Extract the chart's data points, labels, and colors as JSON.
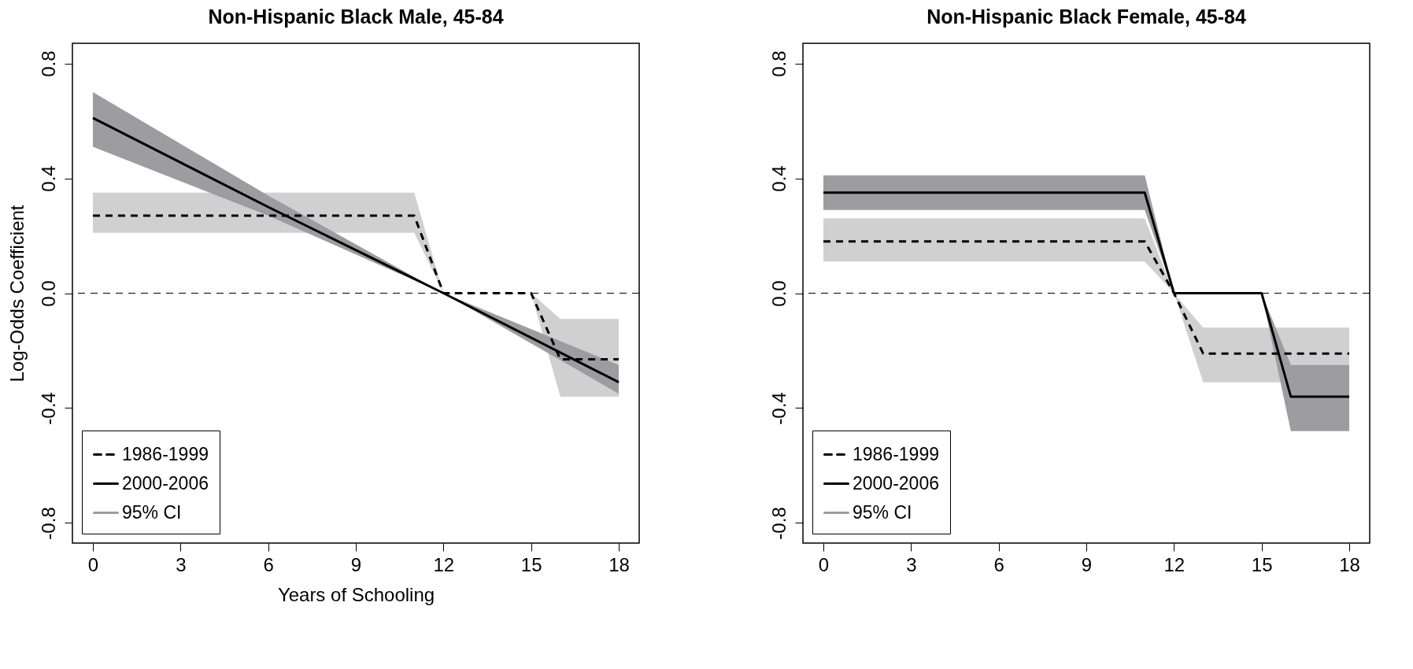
{
  "chart_data": [
    {
      "type": "line",
      "title": "Non-Hispanic Black Male, 45-84",
      "xlabel": "Years of Schooling",
      "ylabel": "Log-Odds Coefficient",
      "xlim": [
        -0.7,
        18.7
      ],
      "ylim": [
        -0.87,
        0.87
      ],
      "xticks": [
        0,
        3,
        6,
        9,
        12,
        15,
        18
      ],
      "yticks": [
        -0.8,
        -0.4,
        {
          "value": 0,
          "label": "0.0"
        },
        0.4,
        0.8
      ],
      "grid": false,
      "legend": "bottom left",
      "marker": "none",
      "annotations": [
        "95% CI"
      ],
      "ref_lines": [
        {
          "axis": "y",
          "value": 0,
          "label": null,
          "line_style": "dashed",
          "color": "#000000"
        }
      ],
      "series": [
        {
          "name": "1986-1999",
          "color": "#000000",
          "line_style": "dashed",
          "x": [
            0,
            11,
            12,
            15,
            16,
            18
          ],
          "values": [
            0.27,
            0.27,
            0,
            0,
            -0.23,
            -0.23
          ],
          "lower": [
            0.21,
            0.21,
            0,
            0,
            -0.36,
            -0.36
          ],
          "upper": [
            0.35,
            0.35,
            0,
            0,
            -0.09,
            -0.09
          ]
        },
        {
          "name": "2000-2006",
          "color": "#000000",
          "line_style": "solid",
          "x": [
            0,
            6,
            12,
            18
          ],
          "values": [
            0.61,
            0.3,
            0,
            -0.31
          ],
          "lower": [
            0.51,
            0.27,
            0,
            -0.35
          ],
          "upper": [
            0.7,
            0.34,
            0,
            -0.25
          ]
        }
      ]
    },
    {
      "type": "line",
      "title": "Non-Hispanic Black Female, 45-84",
      "xlim": [
        -0.7,
        18.7
      ],
      "ylim": [
        -0.87,
        0.87
      ],
      "xticks": [
        0,
        3,
        6,
        9,
        12,
        15,
        18
      ],
      "yticks": [
        -0.8,
        -0.4,
        {
          "value": 0,
          "label": "0.0"
        },
        0.4,
        0.8
      ],
      "grid": false,
      "legend": "bottom left",
      "marker": "none",
      "annotations": [
        "95% CI"
      ],
      "ref_lines": [
        {
          "axis": "y",
          "value": 0,
          "label": null,
          "line_style": "dashed",
          "color": "#000000"
        }
      ],
      "series": [
        {
          "name": "1986-1999",
          "color": "#000000",
          "line_style": "dashed",
          "x": [
            0,
            11,
            12,
            13,
            18
          ],
          "values": [
            0.18,
            0.18,
            0,
            -0.21,
            -0.21
          ],
          "lower": [
            0.11,
            0.11,
            0,
            -0.31,
            -0.31
          ],
          "upper": [
            0.26,
            0.26,
            0,
            -0.12,
            -0.12
          ]
        },
        {
          "name": "2000-2006",
          "color": "#000000",
          "line_style": "solid",
          "x": [
            0,
            11,
            12,
            15,
            16,
            18
          ],
          "values": [
            0.35,
            0.35,
            0,
            0,
            -0.36,
            -0.36
          ],
          "lower": [
            0.29,
            0.29,
            0,
            0,
            -0.48,
            -0.48
          ],
          "upper": [
            0.41,
            0.41,
            0,
            0,
            -0.25,
            -0.25
          ]
        }
      ]
    }
  ]
}
